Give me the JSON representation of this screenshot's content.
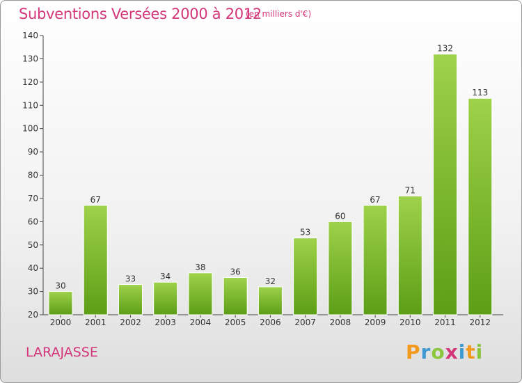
{
  "title": "Subventions Versées 2000 à 2012",
  "unit": "(en milliers d'€)",
  "commune": "LARAJASSE",
  "logo": {
    "letters": [
      "P",
      "r",
      "o",
      "x",
      "i",
      "t",
      "i"
    ],
    "colors": [
      "#f29a1d",
      "#3f9ad4",
      "#8cc63f",
      "#d4367a",
      "#3f9ad4",
      "#f29a1d",
      "#8cc63f"
    ]
  },
  "colors": {
    "accent": "#d4367a",
    "bar_top": "#9ed24a",
    "bar_bottom": "#5c9e16"
  },
  "chart_data": {
    "type": "bar",
    "title": "Subventions Versées 2000 à 2012",
    "subtitle": "(en milliers d'€)",
    "xlabel": "",
    "ylabel": "",
    "categories": [
      "2000",
      "2001",
      "2002",
      "2003",
      "2004",
      "2005",
      "2006",
      "2007",
      "2008",
      "2009",
      "2010",
      "2011",
      "2012"
    ],
    "values": [
      30,
      67,
      33,
      34,
      38,
      36,
      32,
      53,
      60,
      67,
      71,
      132,
      113
    ],
    "ylim": [
      20,
      140
    ],
    "yticks": [
      20,
      30,
      40,
      50,
      60,
      70,
      80,
      90,
      100,
      110,
      120,
      130,
      140
    ],
    "grid": false,
    "legend": "none"
  }
}
